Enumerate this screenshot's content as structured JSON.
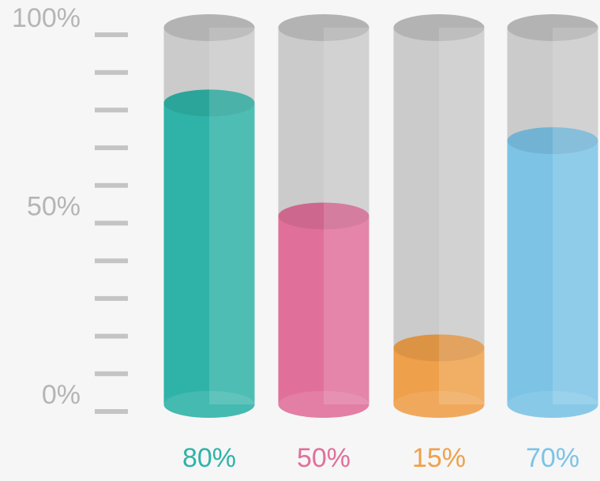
{
  "chart_data": {
    "type": "cylinder",
    "values": [
      80,
      50,
      15,
      70
    ],
    "value_labels": [
      "80%",
      "50%",
      "15%",
      "70%"
    ],
    "colors": [
      "#2fb3a8",
      "#e0709a",
      "#efa04a",
      "#7cc3e6"
    ],
    "ylim": [
      0,
      100
    ],
    "yticks": [
      {
        "value": 0,
        "label": "0%"
      },
      {
        "value": 50,
        "label": "50%"
      },
      {
        "value": 100,
        "label": "100%"
      }
    ],
    "minor_yticks": [
      0,
      10,
      20,
      30,
      40,
      50,
      60,
      70,
      80,
      90,
      100
    ]
  }
}
